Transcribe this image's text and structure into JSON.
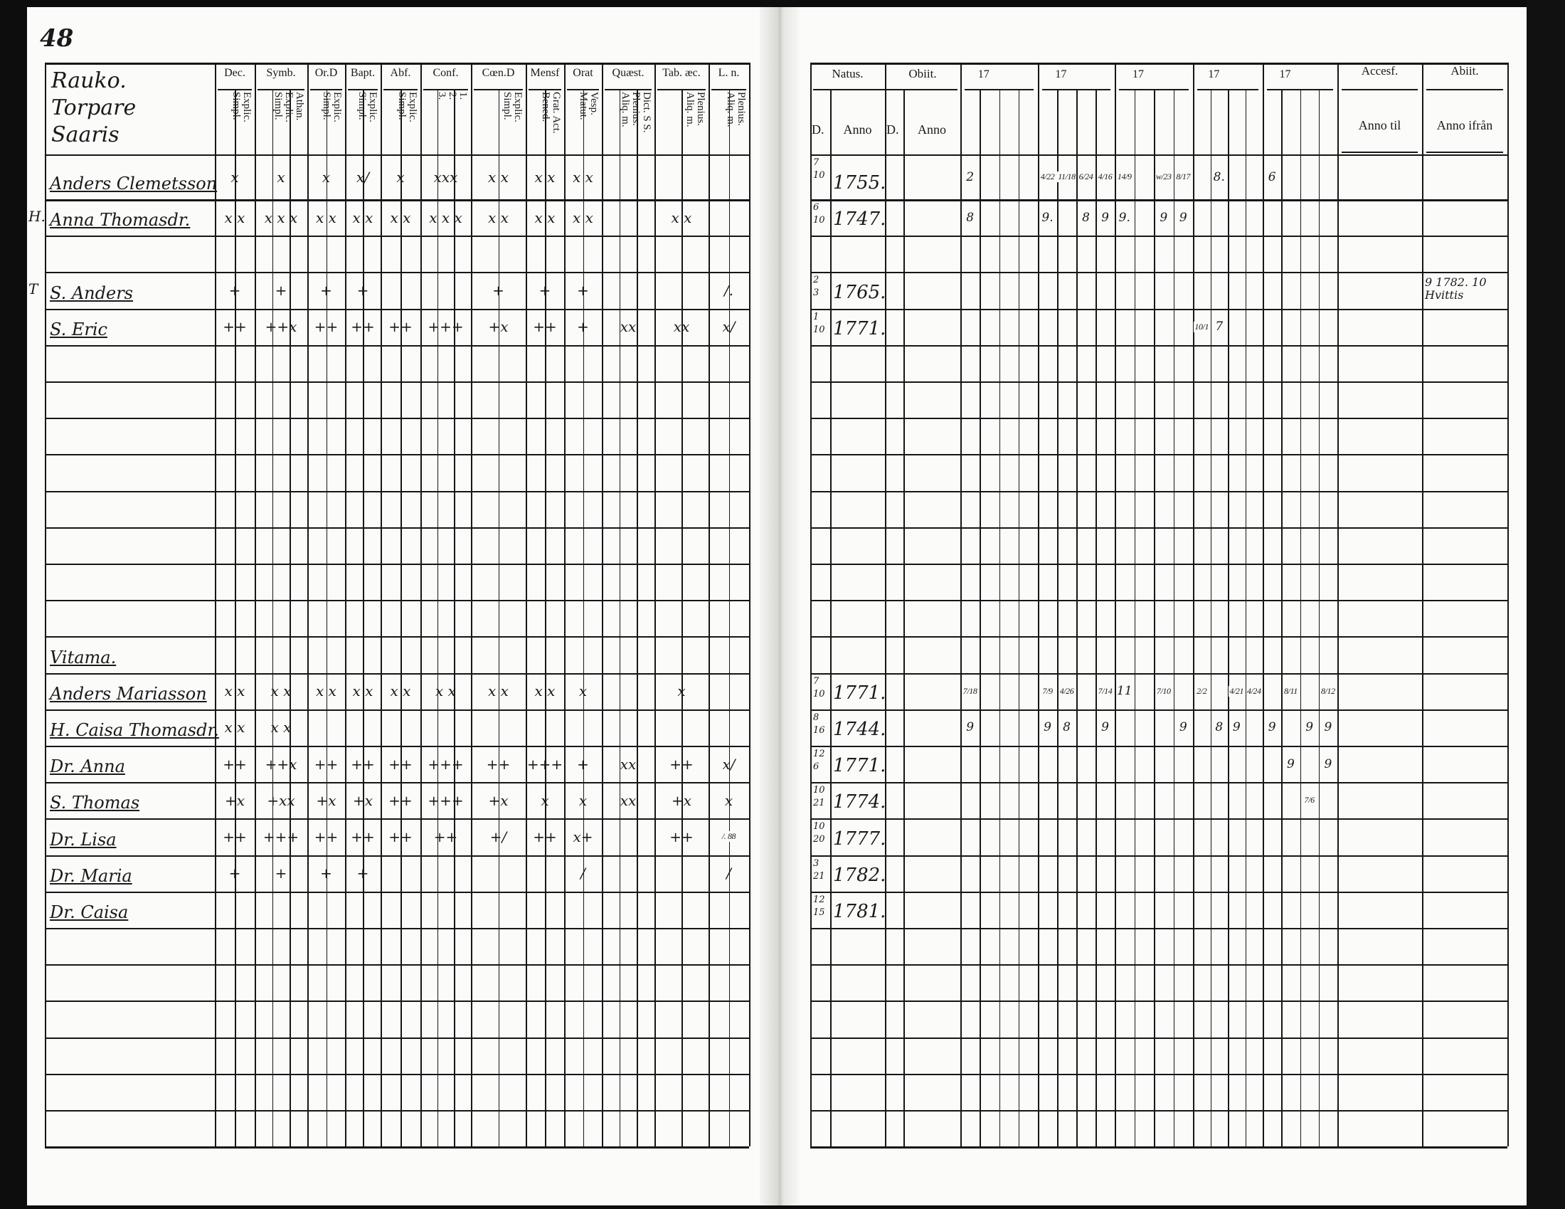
{
  "page_number": "48",
  "left": {
    "title_lines": [
      "Rauko.",
      "Torpare",
      "Saaris"
    ],
    "groups": [
      {
        "label": "Dec.",
        "subs": [
          "Explic.",
          "Simpl."
        ]
      },
      {
        "label": "Symb.",
        "subs": [
          "Athan.",
          "Explic.",
          "Simpl."
        ]
      },
      {
        "label": "Or.D",
        "subs": [
          "Explic.",
          "Simpl."
        ]
      },
      {
        "label": "Bapt.",
        "subs": [
          "Explic.",
          "Simpl."
        ]
      },
      {
        "label": "Abf.",
        "subs": [
          "Explic.",
          "Simpl."
        ]
      },
      {
        "label": "Conf.",
        "subs": [
          "1.",
          "2.",
          "3."
        ]
      },
      {
        "label": "Cœn.D",
        "subs": [
          "Explic.",
          "Simpl."
        ]
      },
      {
        "label": "Mensf",
        "subs": [
          "Grat. Act.",
          "Bened."
        ]
      },
      {
        "label": "Orat",
        "subs": [
          "Vesp.",
          "Matut."
        ]
      },
      {
        "label": "Quæst.",
        "subs": [
          "Dict. S S.",
          "Plenius.",
          "Aliq. m."
        ]
      },
      {
        "label": "Tab. æc.",
        "subs": [
          "Plenius.",
          "Aliq. m."
        ]
      },
      {
        "label": "L. n.",
        "subs": [
          "Plenius.",
          "Aliq. m."
        ]
      }
    ],
    "rows": [
      {
        "name": "Anders Clemetsson",
        "marks": [
          "x",
          "x",
          "x",
          "x/",
          "x",
          "xxx",
          "x x",
          "x x",
          "x x",
          "",
          "",
          ""
        ]
      },
      {
        "margin": "H.",
        "name": "Anna Thomasdr.",
        "marks": [
          "x x",
          "x x x",
          "x x",
          "x x",
          "x x",
          "x x x",
          "x x",
          "x x",
          "x x",
          "",
          "x x",
          ""
        ]
      },
      {},
      {
        "margin": "T",
        "name": "S. Anders",
        "marks": [
          "+",
          "+",
          "+",
          "+",
          "",
          "",
          "+",
          "+",
          "+",
          "",
          "",
          "/."
        ]
      },
      {
        "name": "S. Eric",
        "marks": [
          "++",
          "++x",
          "++",
          "++",
          "++",
          "+++",
          "+x",
          "++",
          "+",
          "xx",
          "xx",
          "x/"
        ]
      },
      {},
      {},
      {},
      {},
      {},
      {},
      {},
      {},
      {
        "name": "Vitama."
      },
      {
        "name": "Anders Mariasson",
        "marks": [
          "x x",
          "x x",
          "x x",
          "x x",
          "x x",
          "x x",
          "x x",
          "x x",
          "x",
          "",
          "x",
          ""
        ]
      },
      {
        "name": "H. Caisa Thomasdr.",
        "marks": [
          "x x",
          "x x",
          "",
          "",
          "",
          "",
          "",
          "",
          "",
          "",
          "",
          ""
        ]
      },
      {
        "name": "Dr. Anna",
        "marks": [
          "++",
          "++x",
          "++",
          "++",
          "++",
          "+++",
          "++",
          "+++",
          "+",
          "xx",
          "++",
          "x/"
        ]
      },
      {
        "name": "S. Thomas",
        "marks": [
          "+x",
          "+xx",
          "+x",
          "+x",
          "++",
          "+++",
          "+x",
          "x",
          "x",
          "xx",
          "+x",
          "x"
        ]
      },
      {
        "name": "Dr. Lisa",
        "marks": [
          "++",
          "+++",
          "++",
          "++",
          "++",
          "++",
          "+/",
          "++",
          "x+",
          "",
          "++",
          "/. 88"
        ]
      },
      {
        "name": "Dr. Maria",
        "marks": [
          "+",
          "+",
          "+",
          "+",
          "",
          "",
          "",
          "",
          "/",
          "",
          "",
          "/"
        ]
      },
      {
        "name": "Dr. Caisa"
      },
      {},
      {},
      {},
      {},
      {},
      {}
    ]
  },
  "right": {
    "natus": {
      "label": "Natus.",
      "day": "D.",
      "year": "Anno"
    },
    "obiit": {
      "label": "Obiit.",
      "day": "D.",
      "year": "Anno"
    },
    "year_groups": [
      "17",
      "17",
      "17",
      "17",
      "17"
    ],
    "accessit": {
      "label": "Accesf.",
      "sub": "Anno til"
    },
    "abiit": {
      "label": "Abiit.",
      "sub": "Anno ifrån"
    },
    "rows": [
      {
        "d1": "7",
        "d2": "10",
        "year": "1755.",
        "exams": [
          "2",
          "",
          "",
          "",
          "4/22",
          "11/18",
          "6/24",
          "4/16",
          "14/9",
          "",
          "w/23",
          "8/17",
          "",
          "8.",
          "",
          "",
          "6",
          "",
          "",
          ""
        ]
      },
      {
        "d1": "6",
        "d2": "10",
        "year": "1747.",
        "exams": [
          "8",
          "",
          "",
          "",
          "9.",
          "",
          "8",
          "9",
          "9.",
          "",
          "9",
          "9",
          "",
          "",
          "",
          "",
          "",
          "",
          "",
          ""
        ]
      },
      {},
      {
        "d1": "2",
        "d2": "3",
        "year": "1765.",
        "abiit": "9 1782. 10 Hvittis"
      },
      {
        "d1": "1",
        "d2": "10",
        "year": "1771.",
        "exams": [
          "",
          "",
          "",
          "",
          "",
          "",
          "",
          "",
          "",
          "",
          "",
          "",
          "10/1",
          "7",
          "",
          "",
          "",
          "",
          "",
          ""
        ]
      },
      {},
      {},
      {},
      {},
      {},
      {},
      {},
      {},
      {},
      {
        "d1": "7",
        "d2": "10",
        "year": "1771.",
        "exams": [
          "7/18",
          "",
          "",
          "",
          "7/9",
          "4/26",
          "",
          "7/14",
          "11",
          "",
          "7/10",
          "",
          "2/2",
          "",
          "4/21",
          "4/24",
          "",
          "8/11",
          "",
          "8/12"
        ]
      },
      {
        "d1": "8",
        "d2": "16",
        "year": "1744.",
        "exams": [
          "9",
          "",
          "",
          "",
          "9",
          "8",
          "",
          "9",
          "",
          "",
          "",
          "9",
          "",
          "8",
          "9",
          "",
          "9",
          "",
          "9",
          "9"
        ]
      },
      {
        "d1": "12",
        "d2": "6",
        "year": "1771.",
        "exams": [
          "",
          "",
          "",
          "",
          "",
          "",
          "",
          "",
          "",
          "",
          "",
          "",
          "",
          "",
          "",
          "",
          "",
          "9",
          "",
          "9"
        ]
      },
      {
        "d1": "10",
        "d2": "21",
        "year": "1774.",
        "exams": [
          "",
          "",
          "",
          "",
          "",
          "",
          "",
          "",
          "",
          "",
          "",
          "",
          "",
          "",
          "",
          "",
          "",
          "",
          "7/6",
          ""
        ]
      },
      {
        "d1": "10",
        "d2": "20",
        "year": "1777."
      },
      {
        "d1": "3",
        "d2": "21",
        "year": "1782."
      },
      {
        "d1": "12",
        "d2": "15",
        "year": "1781."
      },
      {},
      {},
      {},
      {},
      {},
      {}
    ]
  }
}
